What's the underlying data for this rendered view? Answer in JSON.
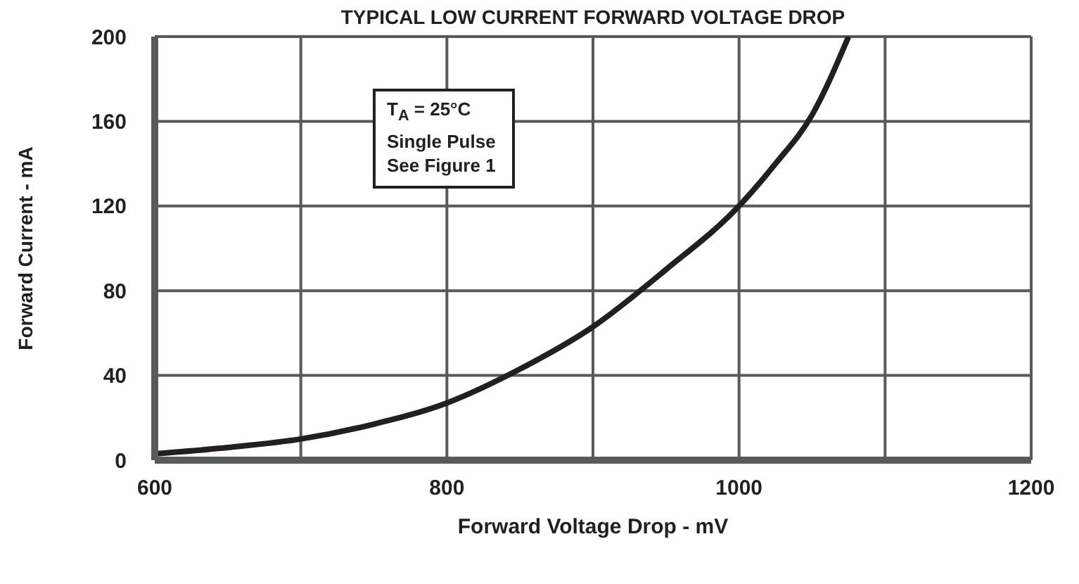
{
  "chart_data": {
    "type": "line",
    "title": "TYPICAL LOW CURRENT FORWARD VOLTAGE DROP",
    "xlabel": "Forward Voltage Drop - mV",
    "ylabel": "Forward Current - mA",
    "annotations": [
      "T$_{A}$ = 25°C",
      "Single Pulse",
      "See Figure 1"
    ],
    "x": [
      600,
      650,
      700,
      750,
      800,
      850,
      900,
      950,
      1000,
      1025,
      1050,
      1075
    ],
    "series": [
      {
        "color": "#231f20",
        "values": [
          3,
          6,
          10,
          17,
          27,
          43,
          63,
          90,
          120,
          140,
          163,
          200
        ]
      }
    ],
    "xlim": [
      600,
      1200
    ],
    "xticks": [
      600,
      800,
      1000,
      1200
    ],
    "ylim": [
      0,
      200
    ],
    "yticks": [
      0,
      40,
      80,
      120,
      160,
      200
    ],
    "grid": true,
    "legend": false,
    "marker": "none",
    "line_style": "solid"
  }
}
